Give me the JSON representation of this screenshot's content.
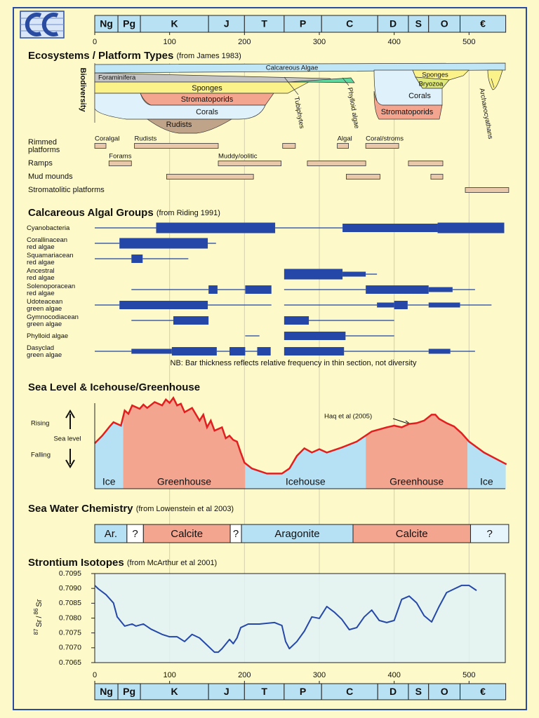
{
  "time_axis": {
    "xlim": [
      0,
      555
    ],
    "xticks": [
      0,
      100,
      200,
      300,
      400,
      500
    ],
    "periods": [
      {
        "label": "Ng",
        "start": 0,
        "end": 31
      },
      {
        "label": "Pg",
        "start": 31,
        "end": 61
      },
      {
        "label": "K",
        "start": 61,
        "end": 152
      },
      {
        "label": "J",
        "start": 152,
        "end": 200
      },
      {
        "label": "T",
        "start": 200,
        "end": 253
      },
      {
        "label": "P",
        "start": 253,
        "end": 303
      },
      {
        "label": "C",
        "start": 303,
        "end": 378
      },
      {
        "label": "D",
        "start": 378,
        "end": 419
      },
      {
        "label": "S",
        "start": 419,
        "end": 446
      },
      {
        "label": "O",
        "start": 446,
        "end": 488
      },
      {
        "label": "€",
        "start": 488,
        "end": 549
      }
    ]
  },
  "ecosystems": {
    "title": "Ecosystems / Platform Types",
    "source": "(from James 1983)",
    "y_label": "Biodiversity",
    "taxa_labels": [
      "Calcareous Algae",
      "Foraminifera",
      "Sponges",
      "Stromatoporids",
      "Corals",
      "Rudists",
      "Tubiphytes",
      "Phylloid algae",
      "Sponges",
      "Bryozoa",
      "Corals",
      "Stromatoporids",
      "Archaeocyathans"
    ],
    "platforms": [
      {
        "label": [
          "Rimmed",
          "platforms"
        ],
        "bars": [
          {
            "start": 0,
            "end": 15,
            "label": "Coralgal"
          },
          {
            "start": 53,
            "end": 165,
            "label": "Rudists"
          },
          {
            "start": 251,
            "end": 268
          },
          {
            "start": 324,
            "end": 339,
            "label": "Algal"
          },
          {
            "start": 362,
            "end": 406,
            "label": "Coral/stroms"
          }
        ]
      },
      {
        "label": [
          "Ramps"
        ],
        "bars": [
          {
            "start": 19,
            "end": 49,
            "label": "Forams"
          },
          {
            "start": 165,
            "end": 249,
            "label": "Muddy/oolitic"
          },
          {
            "start": 284,
            "end": 362
          },
          {
            "start": 419,
            "end": 465
          }
        ]
      },
      {
        "label": [
          "Mud mounds"
        ],
        "bars": [
          {
            "start": 96,
            "end": 212
          },
          {
            "start": 336,
            "end": 381
          },
          {
            "start": 449,
            "end": 465
          }
        ]
      },
      {
        "label": [
          "Stromatolitic platforms"
        ],
        "bars": [
          {
            "start": 495,
            "end": 553
          }
        ]
      }
    ]
  },
  "algal_groups": {
    "title": "Calcareous Algal Groups",
    "source": "(from Riding 1991)",
    "note": "NB: Bar thickness reflects relative frequency in thin section, not diversity",
    "groups": [
      {
        "label": [
          "Cyanobacteria"
        ],
        "segments": [
          [
            0,
            82,
            1
          ],
          [
            82,
            241,
            4
          ],
          [
            241,
            331,
            1
          ],
          [
            331,
            458,
            3
          ],
          [
            458,
            547,
            4
          ]
        ]
      },
      {
        "label": [
          "Corallinacean",
          "red algae"
        ],
        "segments": [
          [
            0,
            33,
            1
          ],
          [
            33,
            151,
            4
          ],
          [
            151,
            162,
            1
          ]
        ]
      },
      {
        "label": [
          "Squamariacean",
          "red algae"
        ],
        "segments": [
          [
            0,
            49,
            1
          ],
          [
            49,
            64,
            3
          ],
          [
            64,
            125,
            1
          ]
        ]
      },
      {
        "label": [
          "Ancestral",
          "red algae"
        ],
        "segments": [
          [
            253,
            331,
            4
          ],
          [
            331,
            362,
            2
          ],
          [
            362,
            377,
            1
          ]
        ]
      },
      {
        "label": [
          "Solenoporacean",
          "red algae"
        ],
        "segments": [
          [
            49,
            152,
            1
          ],
          [
            152,
            164,
            3
          ],
          [
            164,
            201,
            1
          ],
          [
            201,
            236,
            3
          ],
          [
            253,
            362,
            1
          ],
          [
            362,
            446,
            3
          ],
          [
            446,
            478,
            2
          ],
          [
            478,
            508,
            1
          ]
        ]
      },
      {
        "label": [
          "Udoteacean",
          "green algae"
        ],
        "segments": [
          [
            0,
            33,
            1
          ],
          [
            33,
            151,
            3
          ],
          [
            151,
            236,
            1
          ],
          [
            253,
            377,
            1
          ],
          [
            377,
            400,
            2
          ],
          [
            400,
            418,
            3
          ],
          [
            418,
            446,
            1
          ],
          [
            446,
            488,
            2
          ],
          [
            488,
            530,
            1
          ]
        ]
      },
      {
        "label": [
          "Gymnocodiacean",
          "green algae"
        ],
        "segments": [
          [
            49,
            105,
            1
          ],
          [
            105,
            152,
            3
          ],
          [
            253,
            286,
            3
          ],
          [
            286,
            400,
            1
          ]
        ]
      },
      {
        "label": [
          "Phylloid algae"
        ],
        "segments": [
          [
            201,
            220,
            1
          ],
          [
            253,
            335,
            3
          ],
          [
            335,
            400,
            1
          ]
        ]
      },
      {
        "label": [
          "Dasyclad",
          "green algae"
        ],
        "segments": [
          [
            0,
            49,
            1
          ],
          [
            49,
            103,
            2
          ],
          [
            103,
            163,
            3
          ],
          [
            163,
            180,
            1
          ],
          [
            180,
            201,
            3
          ],
          [
            201,
            217,
            1
          ],
          [
            217,
            235,
            3
          ],
          [
            253,
            333,
            3
          ],
          [
            333,
            446,
            1
          ],
          [
            446,
            475,
            2
          ],
          [
            475,
            508,
            1
          ]
        ]
      }
    ]
  },
  "sea_level": {
    "title": "Sea Level & Icehouse/Greenhouse",
    "rising": "Rising",
    "middle": "Sea level",
    "falling": "Falling",
    "annotation": "Haq et al (2005)",
    "ylim": [
      0,
      110
    ],
    "x": [
      0,
      10,
      20,
      25,
      35,
      40,
      45,
      50,
      60,
      65,
      70,
      80,
      90,
      95,
      100,
      105,
      110,
      115,
      120,
      130,
      140,
      145,
      150,
      155,
      160,
      170,
      175,
      180,
      185,
      190,
      195,
      200,
      210,
      230,
      250,
      260,
      270,
      280,
      290,
      300,
      310,
      330,
      350,
      370,
      390,
      400,
      410,
      420,
      430,
      440,
      450,
      455,
      460,
      470,
      480,
      490,
      500,
      520,
      550
    ],
    "values": [
      54,
      63,
      74,
      79,
      75,
      93,
      89,
      99,
      95,
      100,
      96,
      103,
      99,
      106,
      102,
      108,
      99,
      101,
      91,
      96,
      81,
      88,
      73,
      81,
      69,
      73,
      60,
      63,
      58,
      56,
      43,
      31,
      24,
      18,
      18,
      24,
      39,
      48,
      43,
      47,
      43,
      49,
      56,
      68,
      73,
      75,
      73,
      77,
      78,
      81,
      88,
      88,
      83,
      78,
      74,
      66,
      56,
      43,
      29
    ],
    "intervals": [
      {
        "label": "Ice",
        "start": 0,
        "end": 38,
        "kind": "ice"
      },
      {
        "label": "Greenhouse",
        "start": 38,
        "end": 201,
        "kind": "greenhouse"
      },
      {
        "label": "Icehouse",
        "start": 201,
        "end": 362,
        "kind": "ice"
      },
      {
        "label": "Greenhouse",
        "start": 362,
        "end": 498,
        "kind": "greenhouse"
      },
      {
        "label": "Ice",
        "start": 498,
        "end": 549,
        "kind": "ice"
      }
    ]
  },
  "sea_chemistry": {
    "title": "Sea Water Chemistry",
    "source": "(from Lowenstein et al 2003)",
    "intervals": [
      {
        "label": "Ar.",
        "start": 0,
        "end": 43,
        "color": "#b6e1f5"
      },
      {
        "label": "?",
        "start": 43,
        "end": 65,
        "color": "#ffffff"
      },
      {
        "label": "Calcite",
        "start": 65,
        "end": 181,
        "color": "#f4a58f"
      },
      {
        "label": "?",
        "start": 181,
        "end": 196,
        "color": "#ffffff"
      },
      {
        "label": "Aragonite",
        "start": 196,
        "end": 345,
        "color": "#b6e1f5"
      },
      {
        "label": "Calcite",
        "start": 345,
        "end": 502,
        "color": "#f4a58f"
      },
      {
        "label": "?",
        "start": 502,
        "end": 553,
        "color": "#e6f5fc"
      }
    ]
  },
  "strontium": {
    "title": "Strontium Isotopes",
    "source": "(from McArthur et al 2001)",
    "y_label": [
      "87",
      "Sr",
      "/",
      "86",
      "Sr"
    ],
    "ylim": [
      0.7065,
      0.7095
    ],
    "yticks": [
      0.7065,
      {
        "value": 0.707,
        "label": "0.7070"
      },
      0.7075,
      {
        "value": 0.708,
        "label": "0.7080"
      },
      0.7085,
      {
        "value": 0.709,
        "label": "0.7090"
      },
      0.7095
    ],
    "x": [
      0,
      5,
      15,
      25,
      30,
      40,
      50,
      55,
      65,
      75,
      90,
      100,
      110,
      120,
      130,
      140,
      150,
      160,
      165,
      170,
      180,
      185,
      190,
      195,
      205,
      220,
      240,
      250,
      255,
      260,
      270,
      280,
      290,
      300,
      310,
      320,
      330,
      340,
      350,
      360,
      370,
      380,
      390,
      400,
      410,
      420,
      430,
      440,
      450,
      460,
      470,
      480,
      490,
      500,
      510
    ],
    "values": [
      0.7091,
      0.70898,
      0.70879,
      0.70851,
      0.70804,
      0.70773,
      0.7078,
      0.70773,
      0.7078,
      0.70763,
      0.70745,
      0.70737,
      0.70737,
      0.70721,
      0.70745,
      0.70733,
      0.70709,
      0.70685,
      0.70685,
      0.70697,
      0.70728,
      0.70714,
      0.70733,
      0.70768,
      0.7078,
      0.7078,
      0.70785,
      0.70775,
      0.70721,
      0.70697,
      0.70721,
      0.70756,
      0.70804,
      0.70799,
      0.70839,
      0.7082,
      0.70796,
      0.70761,
      0.70768,
      0.70804,
      0.70827,
      0.70792,
      0.70785,
      0.70792,
      0.70863,
      0.70874,
      0.70851,
      0.70808,
      0.70787,
      0.70839,
      0.70886,
      0.70898,
      0.7091,
      0.7091,
      0.70893
    ]
  }
}
